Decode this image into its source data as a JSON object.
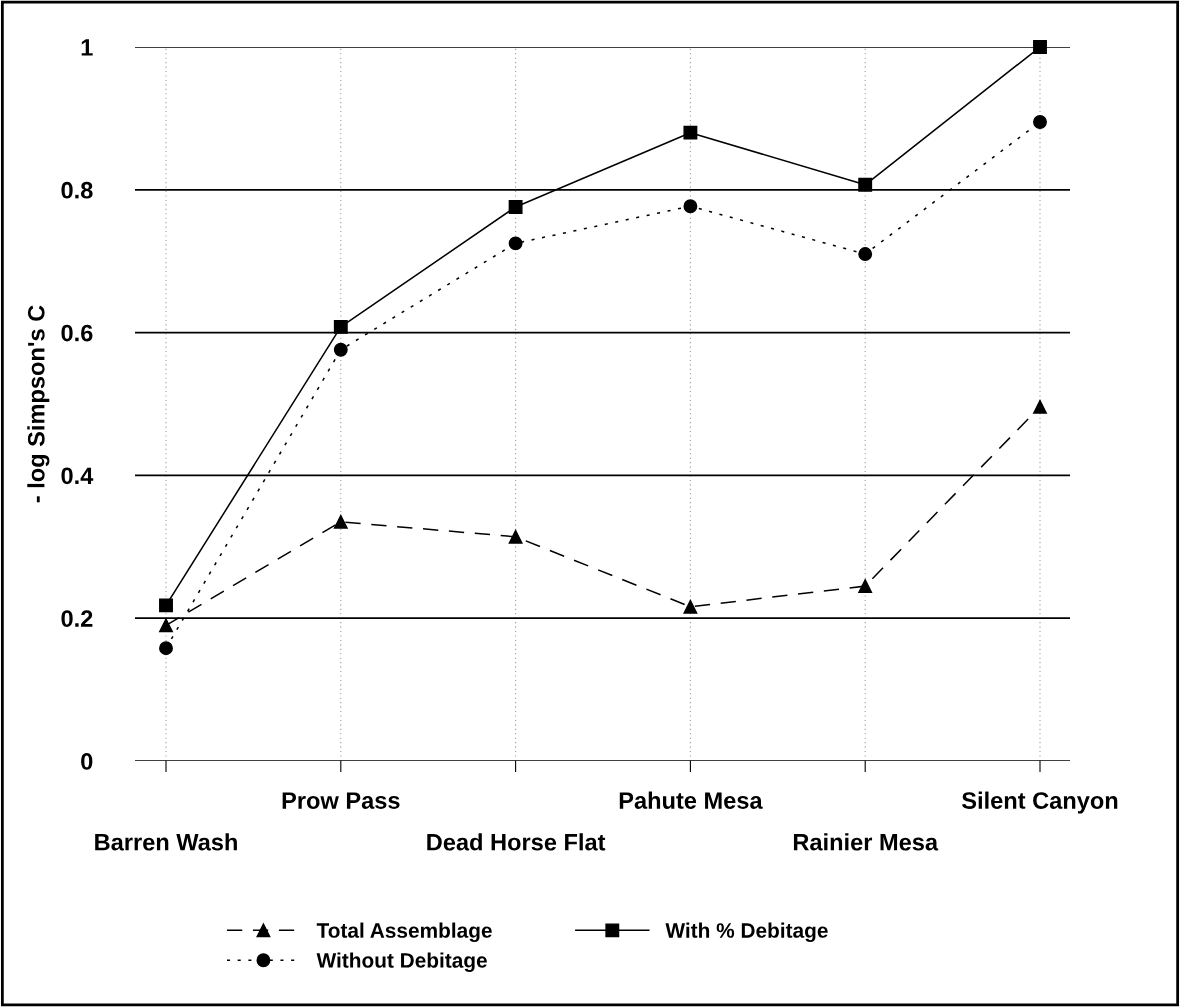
{
  "chart_data": {
    "type": "line",
    "ylabel": "- log Simpson's C",
    "categories": [
      "Barren Wash",
      "Prow Pass",
      "Dead Horse Flat",
      "Pahute Mesa",
      "Rainier Mesa",
      "Silent Canyon"
    ],
    "series": [
      {
        "name": "Total Assemblage",
        "color": "#000000",
        "line_style": "dashed",
        "marker": "triangle",
        "values": [
          0.19,
          0.335,
          0.314,
          0.216,
          0.245,
          0.496
        ]
      },
      {
        "name": "With % Debitage",
        "color": "#000000",
        "line_style": "solid",
        "marker": "square",
        "values": [
          0.218,
          0.608,
          0.776,
          0.88,
          0.807,
          1.0
        ]
      },
      {
        "name": "Without Debitage",
        "color": "#000000",
        "line_style": "dotted",
        "marker": "circle",
        "values": [
          0.158,
          0.576,
          0.725,
          0.777,
          0.71,
          0.895
        ]
      }
    ],
    "ylim": [
      0,
      1
    ],
    "yticks": [
      0,
      0.2,
      0.4,
      0.6,
      0.8,
      1
    ],
    "grid": true,
    "legend": "bottom"
  }
}
